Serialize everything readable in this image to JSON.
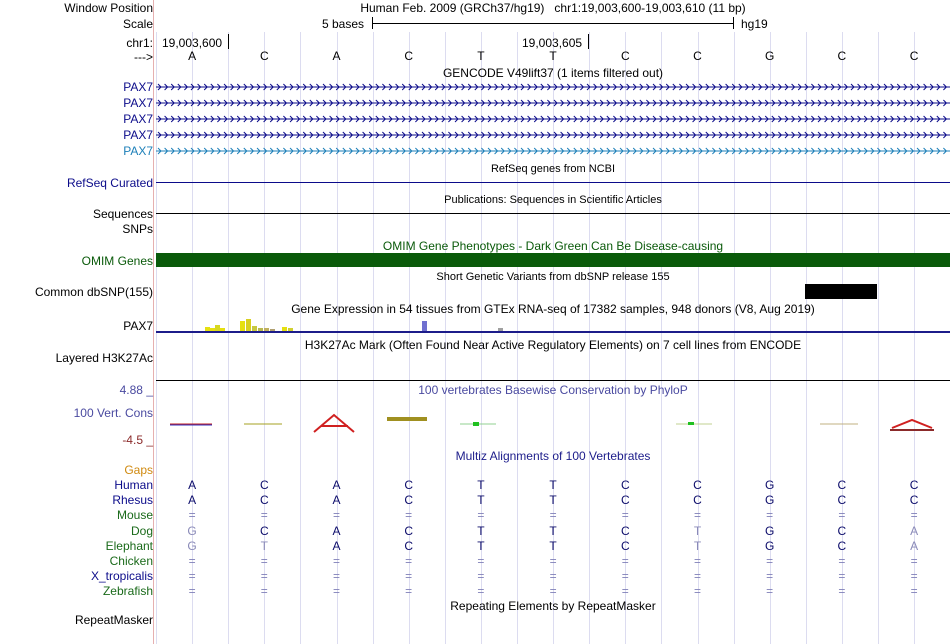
{
  "header": {
    "window_position_label": "Window Position",
    "window_position_value": "Human Feb. 2009 (GRCh37/hg19)   chr1:19,003,600-19,003,610 (11 bp)",
    "scale_label": "Scale",
    "scale_text": "5 bases",
    "scale_assembly": "hg19",
    "chrom_label": "chr1:",
    "coord_left": "19,003,600",
    "coord_right": "19,003,605",
    "strand_label": "--->"
  },
  "bases": [
    "A",
    "C",
    "A",
    "C",
    "T",
    "T",
    "C",
    "C",
    "G",
    "C",
    "C"
  ],
  "tracks": {
    "gencode": {
      "title": "GENCODE V49lift37 (1 items filtered out)",
      "items": [
        {
          "label": "PAX7",
          "color": "#0b0b8a"
        },
        {
          "label": "PAX7",
          "color": "#0b0b8a"
        },
        {
          "label": "PAX7",
          "color": "#0b0b8a"
        },
        {
          "label": "PAX7",
          "color": "#0b0b8a"
        },
        {
          "label": "PAX7",
          "color": "#1c7fb8"
        }
      ]
    },
    "refseq": {
      "title": "RefSeq genes from NCBI",
      "label": "RefSeq Curated",
      "color": "#0b0b8a"
    },
    "publications": {
      "title": "Publications: Sequences in Scientific Articles",
      "label": "Sequences"
    },
    "snps_label": "SNPs",
    "omim": {
      "title": "OMIM Gene Phenotypes - Dark Green Can Be Disease-causing",
      "label": "OMIM Genes",
      "color": "#0a5a0a"
    },
    "dbsnp": {
      "title": "Short Genetic Variants from dbSNP release 155",
      "label": "Common dbSNP(155)"
    },
    "gtex": {
      "title": "Gene Expression in 54 tissues from GTEx RNA-seq of 17382 samples, 948 donors (V8, Aug 2019)",
      "label": "PAX7"
    },
    "h3k27ac": {
      "title": "H3K27Ac Mark (Often Found Near Active Regulatory Elements) on 7 cell lines from ENCODE",
      "label": "Layered H3K27Ac"
    },
    "phylop": {
      "title": "100 vertebrates Basewise Conservation by PhyloP",
      "label": "100 Vert. Cons",
      "max": "4.88 _",
      "min": "-4.5 _",
      "color": "#4a4aa0",
      "min_color": "#8b2a2a"
    },
    "multiz": {
      "title": "Multiz Alignments of 100 Vertebrates",
      "gaps_label": "Gaps",
      "species": [
        {
          "name": "Human",
          "color": "#0b0b8a",
          "bases": [
            "A",
            "C",
            "A",
            "C",
            "T",
            "T",
            "C",
            "C",
            "G",
            "C",
            "C"
          ]
        },
        {
          "name": "Rhesus",
          "color": "#0b0b8a",
          "bases": [
            "A",
            "C",
            "A",
            "C",
            "T",
            "T",
            "C",
            "C",
            "G",
            "C",
            "C"
          ]
        },
        {
          "name": "Mouse",
          "color": "#1a6a1a",
          "bases": [
            "=",
            "=",
            "=",
            "=",
            "=",
            "=",
            "=",
            "=",
            "=",
            "=",
            "="
          ]
        },
        {
          "name": "Dog",
          "color": "#1a6a1a",
          "bases": [
            "G",
            "C",
            "A",
            "C",
            "T",
            "T",
            "C",
            "T",
            "G",
            "C",
            "A"
          ]
        },
        {
          "name": "Elephant",
          "color": "#1a6a1a",
          "bases": [
            "G",
            "T",
            "A",
            "C",
            "T",
            "T",
            "C",
            "T",
            "G",
            "C",
            "A"
          ]
        },
        {
          "name": "Chicken",
          "color": "#1a6a1a",
          "bases": [
            "=",
            "=",
            "=",
            "=",
            "=",
            "=",
            "=",
            "=",
            "=",
            "=",
            "="
          ]
        },
        {
          "name": "X_tropicalis",
          "color": "#0b0b8a",
          "bases": [
            "=",
            "=",
            "=",
            "=",
            "=",
            "=",
            "=",
            "=",
            "=",
            "=",
            "="
          ]
        },
        {
          "name": "Zebrafish",
          "color": "#1a6a1a",
          "bases": [
            "=",
            "=",
            "=",
            "=",
            "=",
            "=",
            "=",
            "=",
            "=",
            "=",
            "="
          ]
        }
      ]
    },
    "repeatmasker": {
      "title": "Repeating Elements by RepeatMasker",
      "label": "RepeatMasker"
    }
  }
}
